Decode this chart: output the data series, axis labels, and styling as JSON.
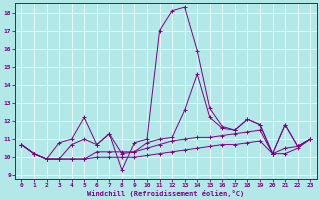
{
  "xlabel": "Windchill (Refroidissement éolien,°C)",
  "xlim": [
    -0.5,
    23.5
  ],
  "ylim": [
    8.8,
    18.5
  ],
  "yticks": [
    9,
    10,
    11,
    12,
    13,
    14,
    15,
    16,
    17,
    18
  ],
  "xticks": [
    0,
    1,
    2,
    3,
    4,
    5,
    6,
    7,
    8,
    9,
    10,
    11,
    12,
    13,
    14,
    15,
    16,
    17,
    18,
    19,
    20,
    21,
    22,
    23
  ],
  "line_color": "#800080",
  "bg_color": "#b2e8e8",
  "grid_color": "#c8e8e8",
  "lines": [
    {
      "x": [
        0,
        1,
        2,
        3,
        4,
        5,
        6,
        7,
        8,
        9,
        10,
        11,
        12,
        13,
        14,
        15,
        16,
        17,
        18,
        19,
        20,
        21,
        22,
        23
      ],
      "y": [
        10.7,
        10.2,
        9.9,
        10.8,
        11.0,
        12.2,
        10.7,
        11.3,
        9.3,
        10.8,
        11.0,
        17.0,
        18.1,
        18.3,
        15.9,
        12.7,
        11.7,
        11.5,
        12.1,
        11.8,
        10.2,
        11.8,
        10.6,
        11.0
      ]
    },
    {
      "x": [
        0,
        1,
        2,
        3,
        4,
        5,
        6,
        7,
        8,
        9,
        10,
        11,
        12,
        13,
        14,
        15,
        16,
        17,
        18,
        19,
        20,
        21,
        22,
        23
      ],
      "y": [
        10.7,
        10.2,
        9.9,
        9.9,
        10.7,
        11.0,
        10.7,
        11.3,
        10.2,
        10.3,
        10.8,
        11.0,
        11.1,
        12.6,
        14.6,
        12.2,
        11.6,
        11.5,
        12.1,
        11.8,
        10.2,
        11.8,
        10.6,
        11.0
      ]
    },
    {
      "x": [
        0,
        1,
        2,
        3,
        4,
        5,
        6,
        7,
        8,
        9,
        10,
        11,
        12,
        13,
        14,
        15,
        16,
        17,
        18,
        19,
        20,
        21,
        22,
        23
      ],
      "y": [
        10.7,
        10.2,
        9.9,
        9.9,
        9.9,
        9.9,
        10.3,
        10.3,
        10.3,
        10.3,
        10.5,
        10.7,
        10.9,
        11.0,
        11.1,
        11.1,
        11.2,
        11.3,
        11.4,
        11.5,
        10.2,
        10.5,
        10.6,
        11.0
      ]
    },
    {
      "x": [
        0,
        1,
        2,
        3,
        4,
        5,
        6,
        7,
        8,
        9,
        10,
        11,
        12,
        13,
        14,
        15,
        16,
        17,
        18,
        19,
        20,
        21,
        22,
        23
      ],
      "y": [
        10.7,
        10.2,
        9.9,
        9.9,
        9.9,
        9.9,
        10.0,
        10.0,
        10.0,
        10.0,
        10.1,
        10.2,
        10.3,
        10.4,
        10.5,
        10.6,
        10.7,
        10.7,
        10.8,
        10.9,
        10.2,
        10.2,
        10.5,
        11.0
      ]
    }
  ]
}
